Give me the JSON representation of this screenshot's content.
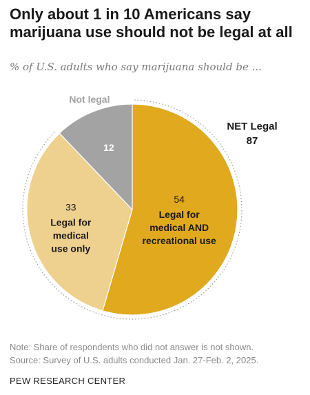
{
  "title": "Only about 1 in 10 Americans say marijuana use should not be legal at all",
  "subtitle": "% of U.S. adults who say marijuana should be ...",
  "chart_data": {
    "type": "pie",
    "title": "Only about 1 in 10 Americans say marijuana use should not be legal at all",
    "subtitle": "% of U.S. adults who say marijuana should be ...",
    "slices": [
      {
        "label": "Legal for medical AND recreational use",
        "lines": [
          "Legal for",
          "medical AND",
          "recreational use"
        ],
        "value": 54,
        "color": "#E0A91E"
      },
      {
        "label": "Legal for medical use only",
        "lines": [
          "Legal for",
          "medical",
          "use only"
        ],
        "value": 33,
        "color": "#EED08F"
      },
      {
        "label": "Not legal",
        "lines": [
          "Not legal"
        ],
        "value": 12,
        "color": "#A3A3A3"
      }
    ],
    "annotation": {
      "label": "NET Legal",
      "value": 87
    }
  },
  "notes": {
    "note": "Note: Share of respondents who did not answer is not shown.",
    "source": "Source: Survey of U.S. adults conducted Jan. 27-Feb. 2, 2025."
  },
  "org": "PEW RESEARCH CENTER"
}
